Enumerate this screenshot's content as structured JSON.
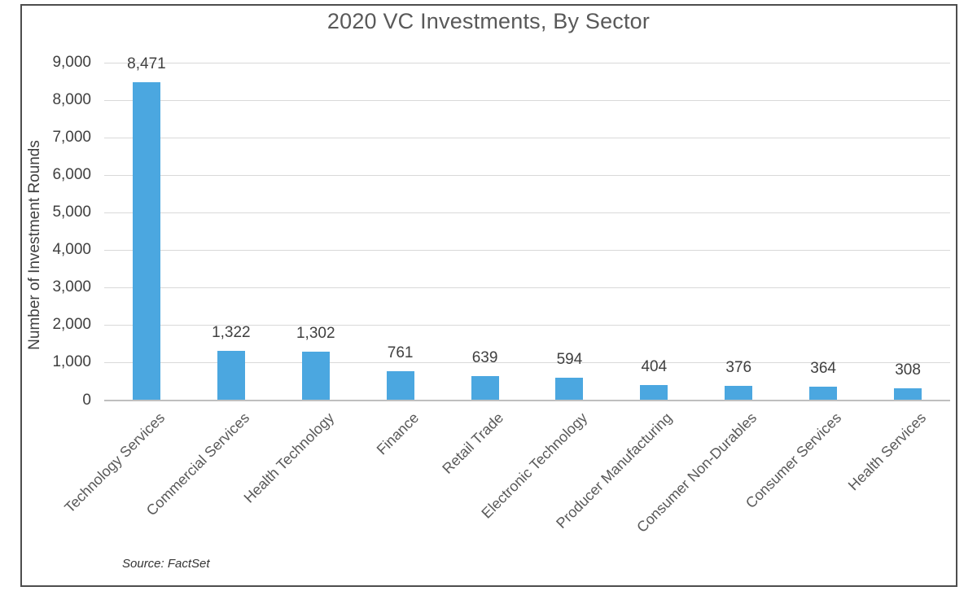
{
  "chart_data": {
    "type": "bar",
    "title": "2020 VC Investments, By Sector",
    "ylabel": "Number of Investment Rounds",
    "xlabel": "",
    "categories": [
      "Technology Services",
      "Commercial Services",
      "Health Technology",
      "Finance",
      "Retail Trade",
      "Electronic Technology",
      "Producer Manufacturing",
      "Consumer Non-Durables",
      "Consumer Services",
      "Health Services"
    ],
    "values": [
      8471,
      1322,
      1302,
      761,
      639,
      594,
      404,
      376,
      364,
      308
    ],
    "value_labels": [
      "8,471",
      "1,322",
      "1,302",
      "761",
      "639",
      "594",
      "404",
      "376",
      "364",
      "308"
    ],
    "ylim": [
      0,
      9000
    ],
    "ytick_step": 1000,
    "ytick_labels": [
      "0",
      "1,000",
      "2,000",
      "3,000",
      "4,000",
      "5,000",
      "6,000",
      "7,000",
      "8,000",
      "9,000"
    ],
    "grid": true,
    "legend": "none",
    "bar_color": "#4ba7e0",
    "source_note": "Source: FactSet"
  }
}
